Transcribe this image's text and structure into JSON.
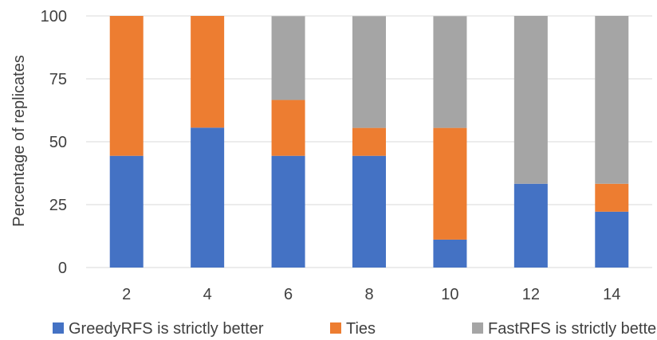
{
  "chart_data": {
    "type": "bar",
    "stacked": true,
    "title": "",
    "xlabel": "",
    "ylabel": "Percentage of replicates",
    "ylim": [
      0,
      100
    ],
    "yticks": [
      0,
      25,
      50,
      75,
      100
    ],
    "grid": true,
    "legend_position": "bottom",
    "categories": [
      "2",
      "4",
      "6",
      "8",
      "10",
      "12",
      "14"
    ],
    "series": [
      {
        "name": "GreedyRFS is strictly better",
        "color": "#4472C4",
        "values": [
          44.4,
          55.6,
          44.4,
          44.4,
          11.1,
          33.3,
          22.2
        ]
      },
      {
        "name": "Ties",
        "color": "#ED7D31",
        "values": [
          55.6,
          44.4,
          22.2,
          11.1,
          44.4,
          0,
          11.1
        ]
      },
      {
        "name": "FastRFS is strictly better",
        "color": "#A5A5A5",
        "values": [
          0,
          0,
          33.3,
          44.4,
          44.4,
          66.7,
          66.7
        ]
      }
    ]
  }
}
